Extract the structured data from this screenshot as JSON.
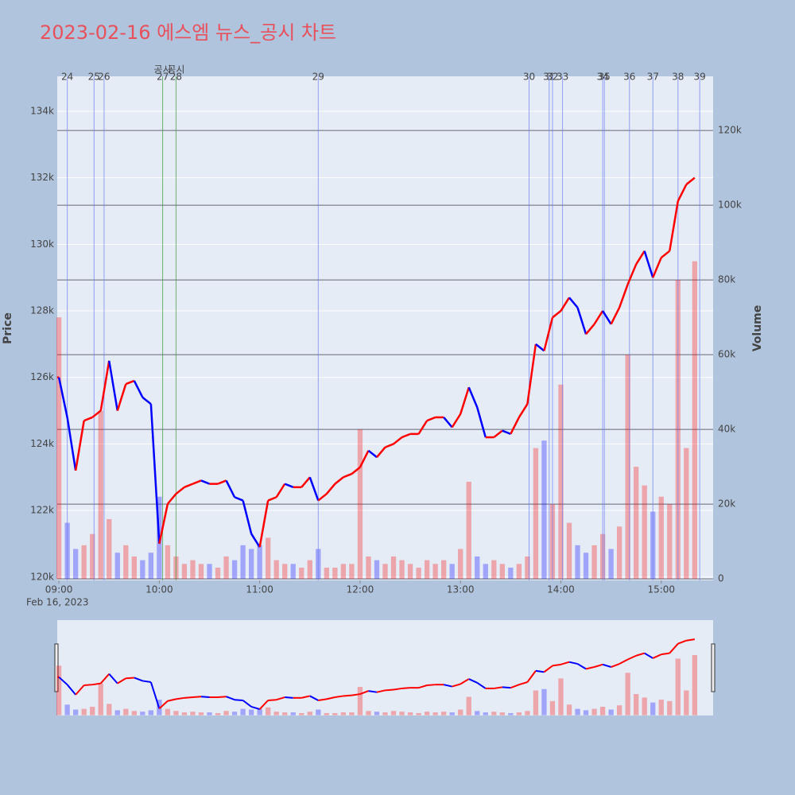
{
  "chart_data": {
    "type": "price-volume",
    "title": "2023-02-16 에스엠 뉴스_공시 차트",
    "ylabel": "Price",
    "y2label": "Volume",
    "x_date_label": "Feb 16, 2023",
    "up_color": "#ff0000",
    "down_color": "#0000ff",
    "event_color": "#6f7ff0",
    "disclosure_color": "#3a9a3a",
    "x": [
      "09:00",
      "09:05",
      "09:10",
      "09:15",
      "09:20",
      "09:25",
      "09:30",
      "09:35",
      "09:40",
      "09:45",
      "09:50",
      "09:55",
      "10:00",
      "10:05",
      "10:10",
      "10:15",
      "10:20",
      "10:25",
      "10:30",
      "10:35",
      "10:40",
      "10:45",
      "10:50",
      "10:55",
      "11:00",
      "11:05",
      "11:10",
      "11:15",
      "11:20",
      "11:25",
      "11:30",
      "11:35",
      "11:40",
      "11:45",
      "11:50",
      "11:55",
      "12:00",
      "12:05",
      "12:10",
      "12:15",
      "12:20",
      "12:25",
      "12:30",
      "12:35",
      "12:40",
      "12:45",
      "12:50",
      "12:55",
      "13:00",
      "13:05",
      "13:10",
      "13:15",
      "13:20",
      "13:25",
      "13:30",
      "13:35",
      "13:40",
      "13:45",
      "13:50",
      "13:55",
      "14:00",
      "14:05",
      "14:10",
      "14:15",
      "14:20",
      "14:25",
      "14:30",
      "14:35",
      "14:40",
      "14:45",
      "14:50",
      "14:55",
      "15:00",
      "15:05",
      "15:10",
      "15:15",
      "15:20"
    ],
    "close": [
      126000,
      124800,
      123200,
      124700,
      124800,
      125000,
      126500,
      125000,
      125800,
      125900,
      125400,
      125200,
      121000,
      122200,
      122500,
      122700,
      122800,
      122900,
      122800,
      122800,
      122900,
      122400,
      122300,
      121300,
      120900,
      122300,
      122400,
      122800,
      122700,
      122700,
      123000,
      122300,
      122500,
      122800,
      123000,
      123100,
      123300,
      123800,
      123600,
      123900,
      124000,
      124200,
      124300,
      124300,
      124700,
      124800,
      124800,
      124500,
      124900,
      125700,
      125100,
      124200,
      124200,
      124400,
      124300,
      124800,
      125200,
      127000,
      126800,
      127800,
      128000,
      128400,
      128100,
      127300,
      127600,
      128000,
      127600,
      128100,
      128800,
      129400,
      129800,
      129000,
      129600,
      129800,
      131300,
      131800,
      132000
    ],
    "volume": [
      70000,
      15000,
      8000,
      9000,
      12000,
      45000,
      16000,
      7000,
      9000,
      6000,
      5000,
      7000,
      22000,
      9000,
      6000,
      4000,
      5000,
      4000,
      4000,
      3000,
      6000,
      5000,
      9000,
      8000,
      9000,
      11000,
      5000,
      4000,
      4000,
      3000,
      5000,
      8000,
      3000,
      3000,
      4000,
      4000,
      40000,
      6000,
      5000,
      4000,
      6000,
      5000,
      4000,
      3000,
      5000,
      4000,
      5000,
      4000,
      8000,
      26000,
      6000,
      4000,
      5000,
      4000,
      3000,
      4000,
      6000,
      35000,
      37000,
      20000,
      52000,
      15000,
      9000,
      7000,
      9000,
      12000,
      8000,
      14000,
      60000,
      30000,
      25000,
      18000,
      22000,
      20000,
      80000,
      35000,
      85000
    ],
    "xlim": [
      "08:59",
      "15:31"
    ],
    "xticks": [
      "09:00",
      "10:00",
      "11:00",
      "12:00",
      "13:00",
      "14:00",
      "15:00"
    ],
    "ylim": [
      119900,
      135050
    ],
    "yticks": [
      {
        "value": 120000,
        "label": "120k"
      },
      {
        "value": 122000,
        "label": "122k"
      },
      {
        "value": 124000,
        "label": "124k"
      },
      {
        "value": 126000,
        "label": "126k"
      },
      {
        "value": 128000,
        "label": "128k"
      },
      {
        "value": 130000,
        "label": "130k"
      },
      {
        "value": 132000,
        "label": "132k"
      },
      {
        "value": 134000,
        "label": "134k"
      }
    ],
    "y2lim": [
      -400,
      134500
    ],
    "y2ticks": [
      0,
      {
        "value": 20000,
        "label": "20k"
      },
      {
        "value": 40000,
        "label": "40k"
      },
      {
        "value": 60000,
        "label": "60k"
      },
      {
        "value": 80000,
        "label": "80k"
      },
      {
        "value": 100000,
        "label": "100k"
      },
      {
        "value": 120000,
        "label": "120k"
      }
    ],
    "events": [
      {
        "label": "24",
        "x": "09:05"
      },
      {
        "label": "25",
        "x": "09:21"
      },
      {
        "label": "26",
        "x": "09:27"
      },
      {
        "label": "27",
        "x": "10:02",
        "kind": "공시"
      },
      {
        "label": "28",
        "x": "10:10",
        "kind": "공시"
      },
      {
        "label": "29",
        "x": "11:35"
      },
      {
        "label": "30",
        "x": "13:41"
      },
      {
        "label": "31",
        "x": "13:53"
      },
      {
        "label": "32",
        "x": "13:55"
      },
      {
        "label": "33",
        "x": "14:01"
      },
      {
        "label": "34",
        "x": "14:25"
      },
      {
        "label": "35",
        "x": "14:26"
      },
      {
        "label": "36",
        "x": "14:41"
      },
      {
        "label": "37",
        "x": "14:55"
      },
      {
        "label": "38",
        "x": "15:10"
      },
      {
        "label": "39",
        "x": "15:23"
      }
    ]
  }
}
